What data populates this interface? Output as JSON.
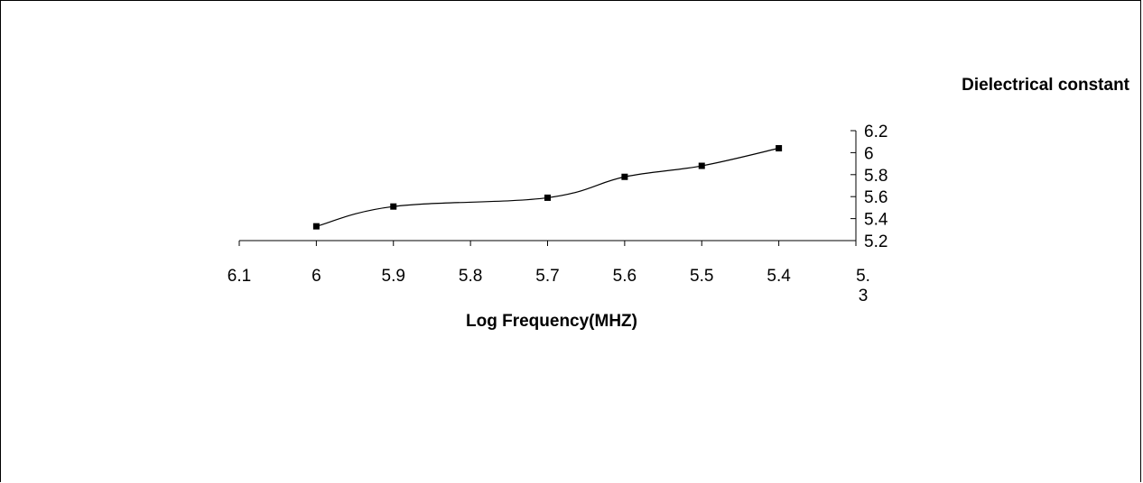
{
  "chart_data": {
    "type": "line",
    "xlabel": "Log Frequency(MHZ)",
    "ylabel": "Dielectrical constant",
    "x_axis": {
      "reversed": true,
      "min": 5.3,
      "max": 6.1,
      "ticks": [
        6.1,
        6.0,
        5.9,
        5.8,
        5.7,
        5.6,
        5.5,
        5.4,
        5.3
      ],
      "tick_labels": [
        "6.1",
        "6",
        "5.9",
        "5.8",
        "5.7",
        "5.6",
        "5.5",
        "5.4",
        "5.\n3"
      ]
    },
    "y_axis": {
      "position": "right",
      "min": 5.2,
      "max": 6.2,
      "ticks": [
        5.2,
        5.4,
        5.6,
        5.8,
        6.0,
        6.2
      ],
      "tick_labels": [
        "5.2",
        "5.4",
        "5.6",
        "5.8",
        "6",
        "6.2"
      ]
    },
    "grid": false,
    "legend": "none",
    "series": [
      {
        "smooth": true,
        "marker": "square",
        "color": "#000000",
        "x": [
          6.0,
          5.9,
          5.7,
          5.6,
          5.5,
          5.4
        ],
        "y": [
          5.33,
          5.51,
          5.59,
          5.78,
          5.88,
          6.04
        ]
      }
    ]
  }
}
